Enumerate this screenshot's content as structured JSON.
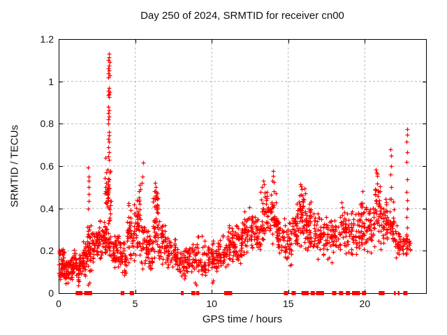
{
  "window": {
    "background": "#ffffff"
  },
  "chart_data": {
    "type": "scatter",
    "title": "Day 250 of 2024, SRMTID for receiver cn00",
    "xlabel": "GPS time / hours",
    "ylabel": "SRMTID / TECUs",
    "xlim": [
      0,
      24
    ],
    "ylim": [
      0,
      1.2
    ],
    "xticks": [
      {
        "v": 0,
        "label": "0"
      },
      {
        "v": 5,
        "label": "5"
      },
      {
        "v": 10,
        "label": "10"
      },
      {
        "v": 15,
        "label": "15"
      },
      {
        "v": 20,
        "label": "20"
      }
    ],
    "yticks": [
      {
        "v": 0,
        "label": "0"
      },
      {
        "v": 0.2,
        "label": "0.2"
      },
      {
        "v": 0.4,
        "label": "0.4"
      },
      {
        "v": 0.6,
        "label": "0.6"
      },
      {
        "v": 0.8,
        "label": "0.8"
      },
      {
        "v": 1,
        "label": "1"
      },
      {
        "v": 1.2,
        "label": "1.2"
      }
    ],
    "grid": true,
    "grid_color": "#b8b8b8",
    "axis_color": "#000000",
    "series": [
      {
        "name": "SRMTID",
        "marker": "plus",
        "color": "#ff0000",
        "bands": [
          [
            0.0,
            0.35,
            0.05,
            0.22,
            48
          ],
          [
            0.35,
            0.85,
            0.04,
            0.17,
            52
          ],
          [
            0.85,
            1.15,
            0.07,
            0.22,
            34
          ],
          [
            1.15,
            1.55,
            0.03,
            0.19,
            30
          ],
          [
            1.55,
            1.85,
            0.07,
            0.26,
            36
          ],
          [
            1.85,
            2.15,
            0.05,
            0.36,
            40
          ],
          [
            2.15,
            2.65,
            0.14,
            0.33,
            50
          ],
          [
            2.65,
            3.05,
            0.14,
            0.36,
            46
          ],
          [
            3.05,
            3.45,
            0.28,
            0.62,
            40
          ],
          [
            3.05,
            3.5,
            0.16,
            0.32,
            26
          ],
          [
            3.5,
            3.95,
            0.1,
            0.3,
            42
          ],
          [
            3.95,
            4.45,
            0.07,
            0.27,
            42
          ],
          [
            4.45,
            4.95,
            0.12,
            0.45,
            46
          ],
          [
            4.95,
            5.35,
            0.14,
            0.52,
            38
          ],
          [
            5.35,
            5.85,
            0.1,
            0.36,
            42
          ],
          [
            5.85,
            6.15,
            0.1,
            0.3,
            28
          ],
          [
            6.15,
            6.5,
            0.15,
            0.52,
            40
          ],
          [
            6.2,
            6.45,
            0.38,
            0.5,
            14
          ],
          [
            6.5,
            7.05,
            0.12,
            0.35,
            48
          ],
          [
            7.05,
            7.65,
            0.1,
            0.28,
            48
          ],
          [
            7.65,
            8.3,
            0.07,
            0.24,
            52
          ],
          [
            8.3,
            9.0,
            0.08,
            0.26,
            46
          ],
          [
            9.0,
            9.65,
            0.05,
            0.28,
            40
          ],
          [
            9.65,
            10.35,
            0.08,
            0.26,
            52
          ],
          [
            10.35,
            10.95,
            0.1,
            0.28,
            46
          ],
          [
            10.95,
            11.45,
            0.12,
            0.32,
            42
          ],
          [
            11.45,
            11.95,
            0.13,
            0.33,
            42
          ],
          [
            11.95,
            12.55,
            0.15,
            0.42,
            50
          ],
          [
            12.55,
            13.15,
            0.16,
            0.38,
            50
          ],
          [
            13.15,
            13.65,
            0.2,
            0.52,
            46
          ],
          [
            13.65,
            14.25,
            0.2,
            0.55,
            50
          ],
          [
            14.25,
            14.75,
            0.14,
            0.4,
            42
          ],
          [
            14.75,
            15.25,
            0.12,
            0.34,
            36
          ],
          [
            15.25,
            15.65,
            0.17,
            0.45,
            36
          ],
          [
            15.65,
            16.15,
            0.2,
            0.52,
            50
          ],
          [
            16.15,
            16.65,
            0.17,
            0.45,
            46
          ],
          [
            16.65,
            17.35,
            0.15,
            0.4,
            52
          ],
          [
            17.35,
            18.05,
            0.12,
            0.4,
            48
          ],
          [
            18.05,
            18.85,
            0.17,
            0.45,
            56
          ],
          [
            18.85,
            19.65,
            0.15,
            0.42,
            52
          ],
          [
            19.65,
            20.25,
            0.15,
            0.46,
            46
          ],
          [
            20.25,
            20.65,
            0.18,
            0.42,
            34
          ],
          [
            20.65,
            21.0,
            0.24,
            0.58,
            36
          ],
          [
            21.0,
            21.55,
            0.2,
            0.45,
            42
          ],
          [
            21.55,
            21.95,
            0.22,
            0.45,
            32
          ],
          [
            21.95,
            22.4,
            0.15,
            0.33,
            32
          ],
          [
            22.4,
            22.75,
            0.16,
            0.28,
            22
          ],
          [
            22.75,
            22.95,
            0.17,
            0.26,
            12
          ]
        ],
        "points": [
          [
            3.28,
            1.13
          ],
          [
            3.3,
            1.115
          ],
          [
            3.25,
            1.1
          ],
          [
            3.32,
            1.09
          ],
          [
            3.27,
            1.075
          ],
          [
            3.22,
            1.06
          ],
          [
            3.3,
            1.05
          ],
          [
            3.26,
            1.04
          ],
          [
            3.33,
            1.03
          ],
          [
            3.24,
            1.02
          ],
          [
            3.28,
            0.97
          ],
          [
            3.25,
            0.955
          ],
          [
            3.31,
            0.95
          ],
          [
            3.27,
            0.94
          ],
          [
            3.23,
            0.935
          ],
          [
            3.29,
            0.925
          ],
          [
            3.26,
            0.88
          ],
          [
            3.3,
            0.865
          ],
          [
            3.24,
            0.85
          ],
          [
            3.28,
            0.835
          ],
          [
            3.26,
            0.82
          ],
          [
            3.25,
            0.8
          ],
          [
            3.3,
            0.76
          ],
          [
            3.27,
            0.745
          ],
          [
            3.24,
            0.73
          ],
          [
            3.29,
            0.715
          ],
          [
            3.26,
            0.69
          ],
          [
            3.28,
            0.665
          ],
          [
            3.24,
            0.645
          ],
          [
            3.3,
            0.63
          ],
          [
            1.93,
            0.595
          ],
          [
            1.95,
            0.55
          ],
          [
            1.96,
            0.53
          ],
          [
            1.94,
            0.5
          ],
          [
            1.97,
            0.467
          ],
          [
            1.95,
            0.434
          ],
          [
            1.93,
            0.4
          ],
          [
            3.05,
            0.64
          ],
          [
            3.08,
            0.57
          ],
          [
            3.02,
            0.545
          ],
          [
            3.1,
            0.52
          ],
          [
            3.06,
            0.5
          ],
          [
            3.0,
            0.47
          ],
          [
            3.04,
            0.43
          ],
          [
            5.52,
            0.617
          ],
          [
            5.48,
            0.551
          ],
          [
            5.42,
            0.52
          ],
          [
            5.35,
            0.49
          ],
          [
            5.3,
            0.51
          ],
          [
            5.25,
            0.48
          ],
          [
            6.3,
            0.522
          ],
          [
            6.33,
            0.5
          ],
          [
            13.35,
            0.53
          ],
          [
            13.4,
            0.515
          ],
          [
            13.3,
            0.5
          ],
          [
            14.0,
            0.577
          ],
          [
            14.02,
            0.555
          ],
          [
            13.97,
            0.53
          ],
          [
            15.85,
            0.505
          ],
          [
            15.9,
            0.49
          ],
          [
            19.85,
            0.48
          ],
          [
            20.7,
            0.585
          ],
          [
            20.75,
            0.57
          ],
          [
            20.8,
            0.555
          ],
          [
            21.68,
            0.68
          ],
          [
            21.72,
            0.65
          ],
          [
            21.7,
            0.6
          ],
          [
            21.66,
            0.56
          ],
          [
            21.73,
            0.5
          ],
          [
            21.7,
            0.445
          ],
          [
            22.75,
            0.775
          ],
          [
            22.77,
            0.748
          ],
          [
            22.73,
            0.715
          ],
          [
            22.76,
            0.666
          ],
          [
            22.74,
            0.62
          ],
          [
            22.77,
            0.537
          ],
          [
            22.73,
            0.478
          ],
          [
            22.75,
            0.438
          ],
          [
            22.76,
            0.4
          ],
          [
            22.72,
            0.36
          ],
          [
            22.75,
            0.31
          ],
          [
            22.74,
            0.27
          ],
          [
            22.76,
            0.22
          ],
          [
            22.73,
            0.185
          ],
          [
            1.3,
            0.035
          ],
          [
            1.9,
            0.04
          ],
          [
            2.0,
            0.05
          ],
          [
            8.2,
            0.07
          ],
          [
            8.9,
            0.05
          ],
          [
            9.0,
            0.04
          ],
          [
            10.05,
            0.05
          ],
          [
            10.1,
            0.06
          ],
          [
            0.45,
            0.045
          ],
          [
            0.6,
            0.05
          ]
        ]
      }
    ],
    "zero_markers": {
      "marker": "square",
      "color": "#ff0000",
      "hours": [
        1.25,
        1.32,
        1.42,
        1.8,
        1.88,
        1.96,
        2.05,
        4.78,
        8.8,
        10.95,
        11.2,
        14.85,
        15.35,
        16.0,
        16.2,
        16.6,
        16.95,
        17.2,
        18.0,
        18.45,
        18.9,
        19.3,
        19.55,
        19.95,
        21.05,
        22.65
      ],
      "narrow_hours": [
        4.1,
        4.22,
        8.03,
        8.1,
        9.03,
        9.12,
        21.22,
        21.95,
        22.2
      ]
    }
  }
}
